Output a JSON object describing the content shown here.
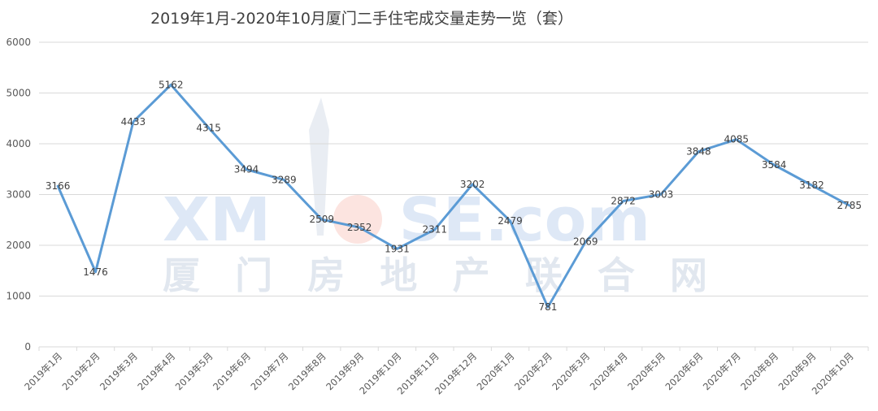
{
  "chart_data": {
    "type": "line",
    "title": "2019年1月-2020年10月厦门二手住宅成交量走势一览（套）",
    "categories": [
      "2019年1月",
      "2019年2月",
      "2019年3月",
      "2019年4月",
      "2019年5月",
      "2019年6月",
      "2019年7月",
      "2019年8月",
      "2019年9月",
      "2019年10月",
      "2019年11月",
      "2019年12月",
      "2020年1月",
      "2020年2月",
      "2020年3月",
      "2020年4月",
      "2020年5月",
      "2020年6月",
      "2020年7月",
      "2020年8月",
      "2020年9月",
      "2020年10月"
    ],
    "series": [
      {
        "values": [
          3166,
          1476,
          4433,
          5162,
          4315,
          3494,
          3289,
          2509,
          2352,
          1931,
          2311,
          3202,
          2479,
          781,
          2069,
          2872,
          3003,
          3848,
          4085,
          3584,
          3182,
          2785
        ]
      }
    ],
    "ylim": [
      0,
      6000
    ],
    "yticks": [
      0,
      1000,
      2000,
      3000,
      4000,
      5000,
      6000
    ],
    "grid": true,
    "line_color": "#5B9BD5"
  },
  "watermark": {
    "logo_text": "XMHOUSE.com",
    "subtitle": "厦门房地产联合网"
  }
}
